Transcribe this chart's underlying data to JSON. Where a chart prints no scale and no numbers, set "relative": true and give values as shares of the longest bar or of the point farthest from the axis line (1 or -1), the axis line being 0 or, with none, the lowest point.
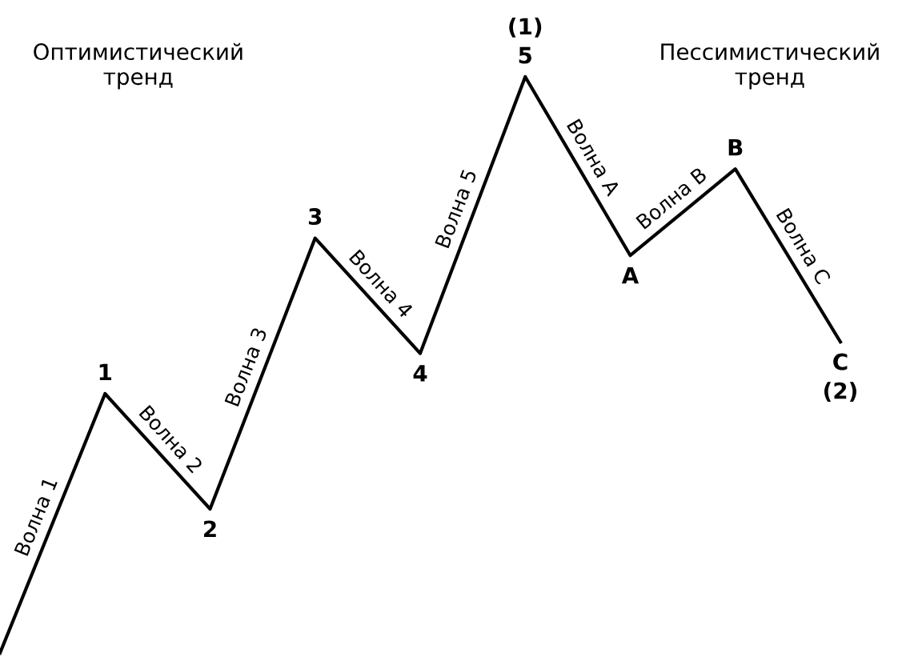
{
  "chart_data": {
    "type": "line",
    "relative": true,
    "categories": [
      null,
      null,
      null,
      null,
      null,
      null,
      null,
      null,
      null
    ],
    "series": [
      {
        "color": "#000000",
        "values": [
          0,
          0.45,
          0.25,
          0.72,
          0.52,
          1,
          0.69,
          0.84,
          0.54
        ]
      }
    ],
    "annotations": [
      "Оптимистический\nтренд",
      "Пессимистический\nтренд",
      "Волна 1",
      "Волна 2",
      "Волна 3",
      "Волна 4",
      "Волна 5",
      "Волна A",
      "Волна B",
      "Волна C",
      "(1)",
      "(2)",
      "1",
      "2",
      "3",
      "4",
      "5",
      "A",
      "B",
      "C"
    ],
    "marker": "none",
    "line_style": "solid"
  }
}
